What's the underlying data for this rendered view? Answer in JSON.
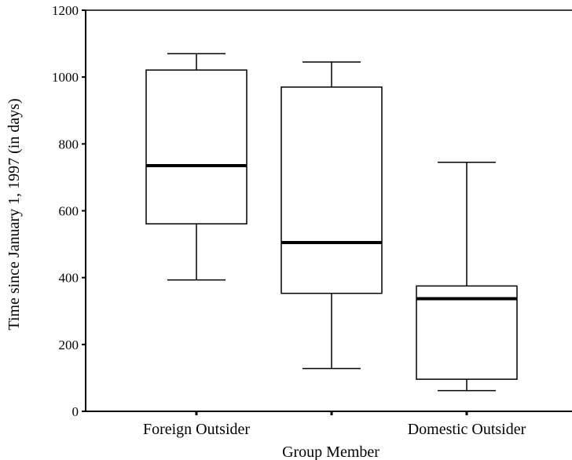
{
  "chart_data": {
    "type": "box",
    "title": "",
    "xlabel": "Group Member",
    "ylabel": "Time since January 1, 1997 (in days)",
    "ylim": [
      0,
      1200
    ],
    "yticks": [
      0,
      200,
      400,
      600,
      800,
      1000,
      1200
    ],
    "grid": false,
    "categories": [
      "Foreign Outsider",
      "",
      "Domestic Outsider"
    ],
    "boxes": [
      {
        "category": "Foreign Outsider",
        "whisker_low": 393,
        "q1": 561,
        "median": 735,
        "q3": 1021,
        "whisker_high": 1070
      },
      {
        "category": "",
        "whisker_low": 128,
        "q1": 353,
        "median": 505,
        "q3": 970,
        "whisker_high": 1045
      },
      {
        "category": "Domestic Outsider",
        "whisker_low": 62,
        "q1": 96,
        "median": 337,
        "q3": 375,
        "whisker_high": 745
      }
    ]
  }
}
